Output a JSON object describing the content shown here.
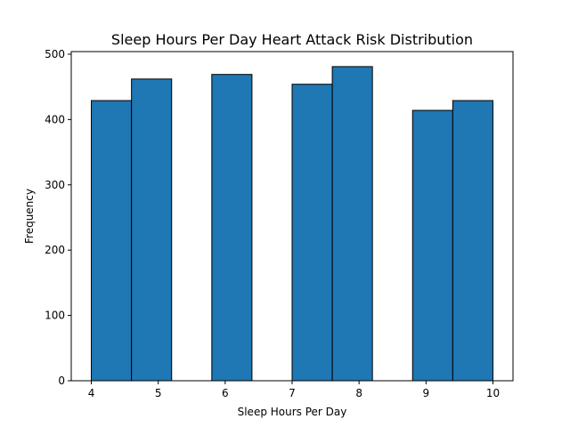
{
  "chart_data": {
    "type": "bar",
    "title": "Sleep Hours Per Day Heart Attack Risk Distribution",
    "xlabel": "Sleep Hours Per Day",
    "ylabel": "Frequency",
    "xlim": [
      3.7,
      10.3
    ],
    "ylim": [
      0,
      504
    ],
    "x_ticks": [
      4,
      5,
      6,
      7,
      8,
      9,
      10
    ],
    "y_ticks": [
      0,
      100,
      200,
      300,
      400,
      500
    ],
    "grid": false,
    "bar_color": "#1f77b4",
    "edge_color": "#000000",
    "bins": [
      {
        "x0": 4.0,
        "x1": 4.6,
        "value": 429
      },
      {
        "x0": 4.6,
        "x1": 5.2,
        "value": 462
      },
      {
        "x0": 5.2,
        "x1": 5.8,
        "value": 0
      },
      {
        "x0": 5.8,
        "x1": 6.4,
        "value": 469
      },
      {
        "x0": 6.4,
        "x1": 7.0,
        "value": 0
      },
      {
        "x0": 7.0,
        "x1": 7.6,
        "value": 454
      },
      {
        "x0": 7.6,
        "x1": 8.2,
        "value": 481
      },
      {
        "x0": 8.2,
        "x1": 8.8,
        "value": 0
      },
      {
        "x0": 8.8,
        "x1": 9.4,
        "value": 414
      },
      {
        "x0": 9.4,
        "x1": 10.0,
        "value": 429
      }
    ]
  }
}
